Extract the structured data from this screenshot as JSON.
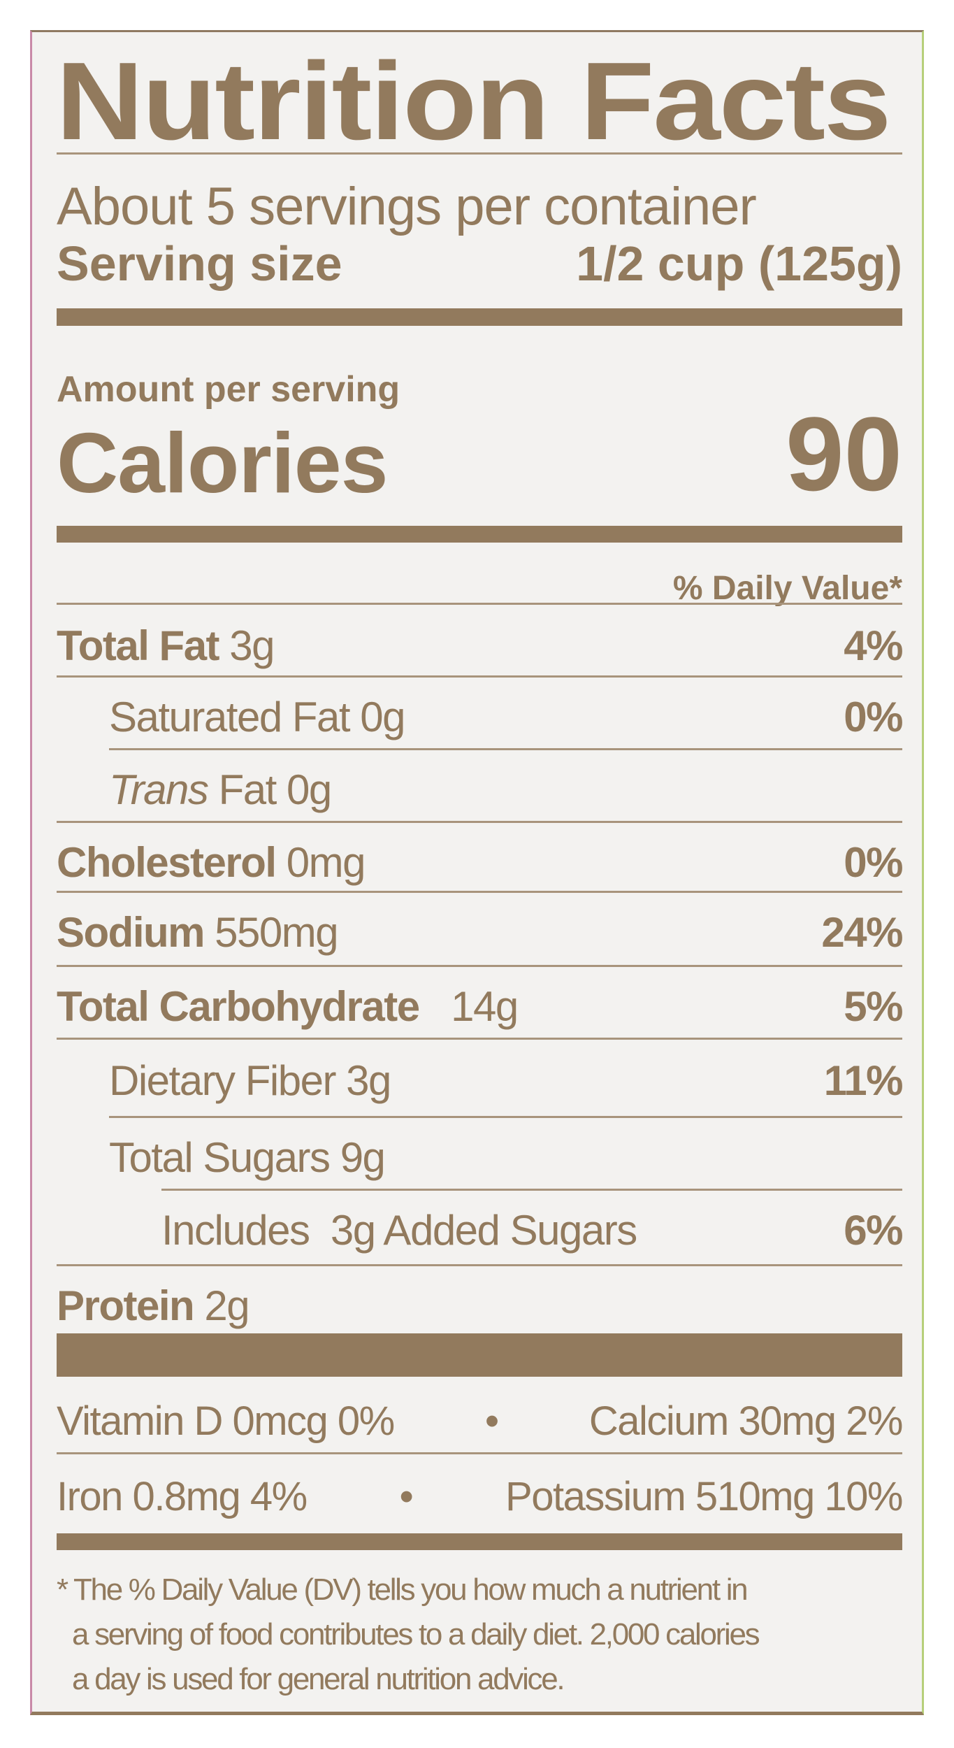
{
  "title": "Nutrition Facts",
  "servings_per_container": "About 5 servings per container",
  "serving_size": {
    "label": "Serving size",
    "value": "1/2 cup (125g)"
  },
  "amount_per_serving": "Amount per serving",
  "calories": {
    "label": "Calories",
    "value": "90"
  },
  "daily_value_header": "% Daily Value*",
  "nutrients": [
    {
      "name": "Total Fat",
      "amount": "3g",
      "dv": "4%"
    },
    {
      "name": "Saturated Fat",
      "amount": "0g",
      "dv": "0%"
    },
    {
      "name": "Trans",
      "name_suffix": "Fat",
      "amount": "0g",
      "dv": ""
    },
    {
      "name": "Cholesterol",
      "amount": "0mg",
      "dv": "0%"
    },
    {
      "name": "Sodium",
      "amount": "550mg",
      "dv": "24%"
    },
    {
      "name": "Total Carbohydrate",
      "amount": "14g",
      "dv": "5%"
    },
    {
      "name": "Dietary Fiber",
      "amount": "3g",
      "dv": "11%"
    },
    {
      "name": "Total Sugars",
      "amount": "9g",
      "dv": ""
    },
    {
      "name": "Includes",
      "amount": "3g Added Sugars",
      "dv": "6%"
    },
    {
      "name": "Protein",
      "amount": "2g",
      "dv": ""
    }
  ],
  "vitamins": [
    {
      "left": "Vitamin D 0mcg 0%",
      "separator": "•",
      "right": "Calcium 30mg 2%"
    },
    {
      "left": "Iron 0.8mg 4%",
      "separator": "•",
      "right": "Potassium 510mg 10%"
    }
  ],
  "footnote": [
    "* The % Daily Value (DV) tells you how much a nutrient in",
    "a serving of food contributes to a daily diet. 2,000 calories",
    "a day is used for general nutrition advice."
  ],
  "colors": {
    "ink": "#927a5d",
    "background": "#f3f2f0"
  }
}
